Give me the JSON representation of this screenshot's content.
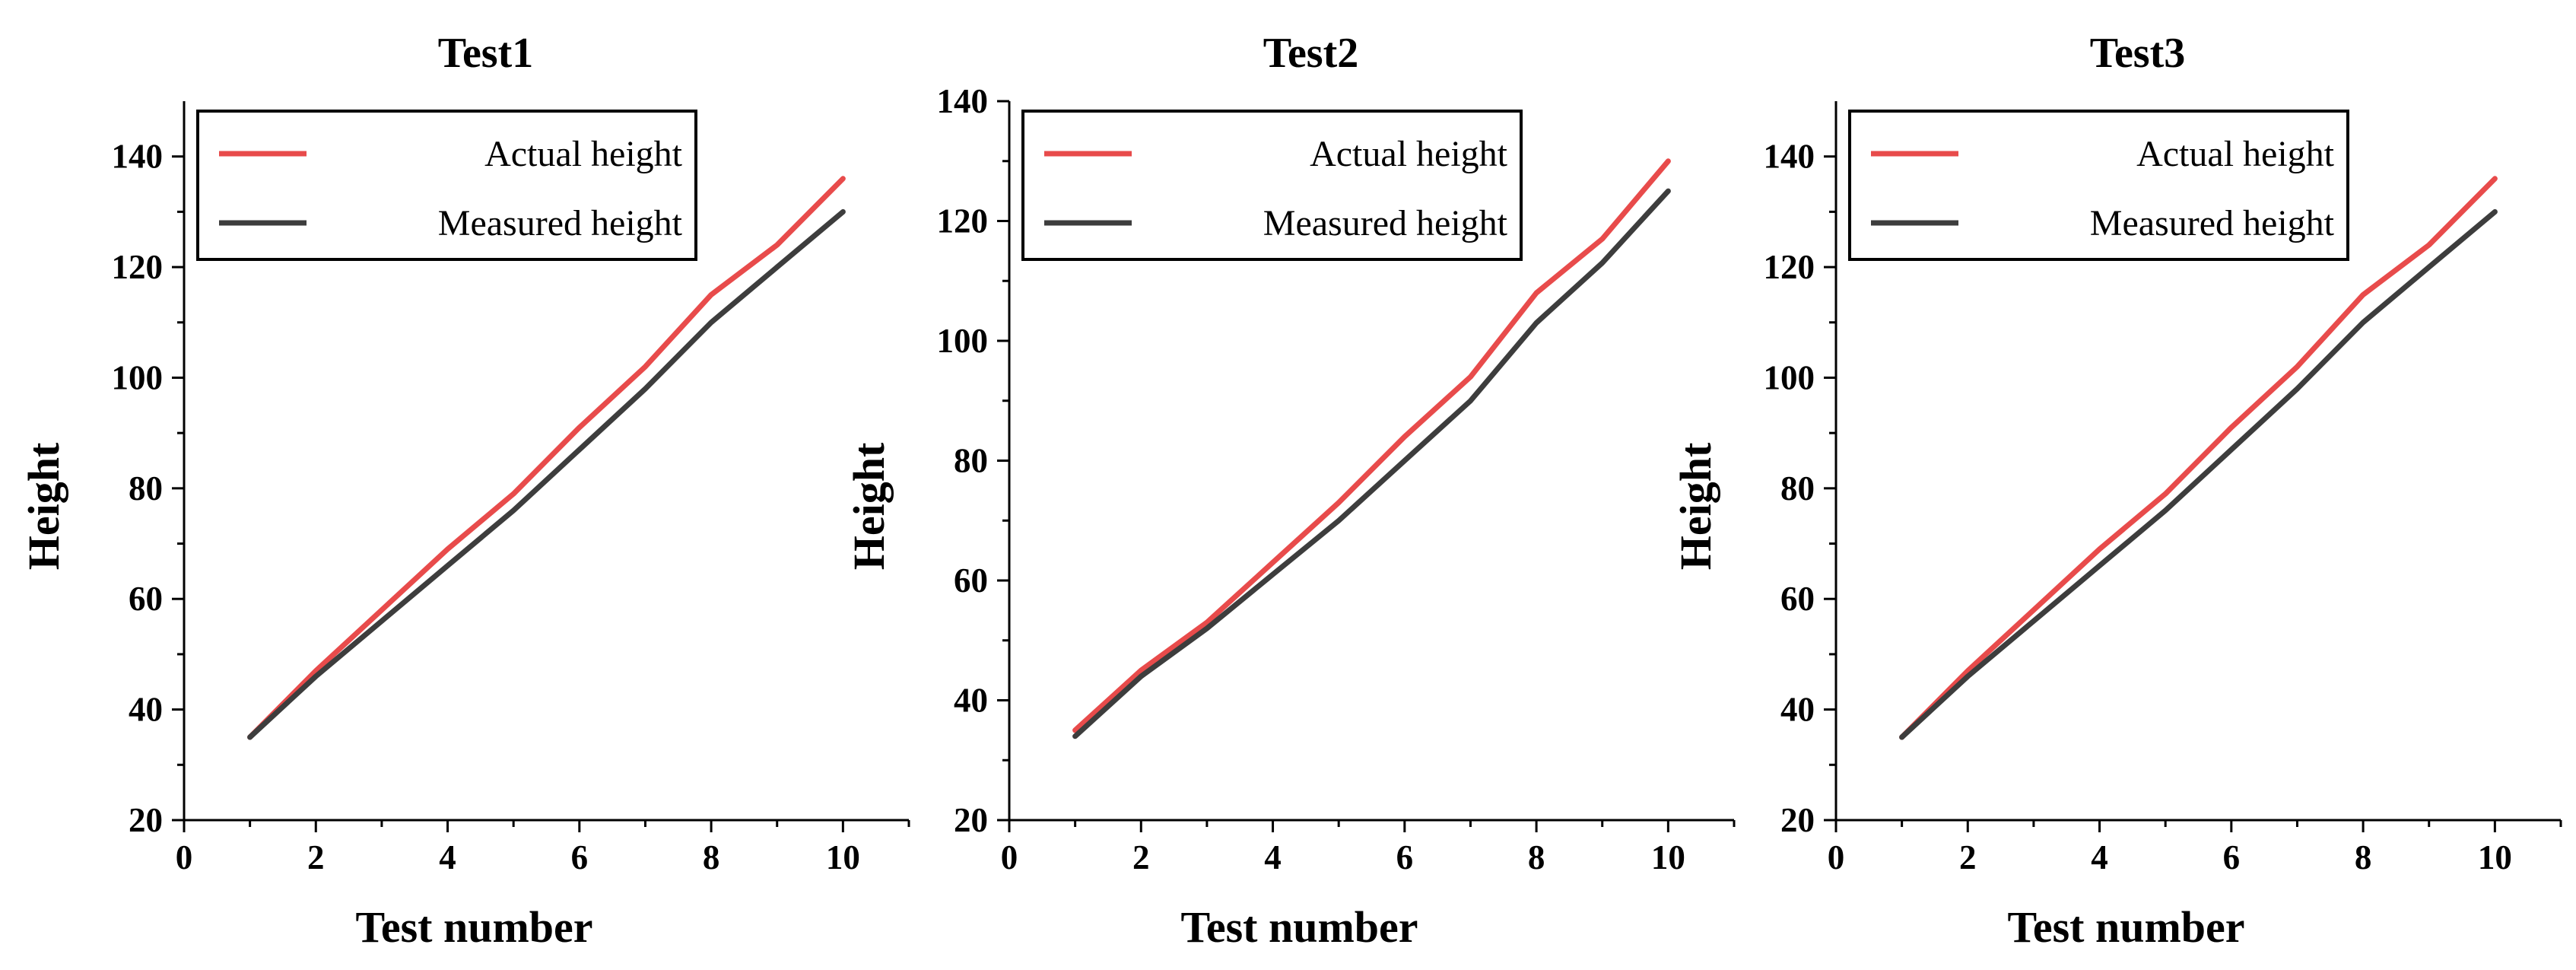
{
  "chart_data": [
    {
      "type": "line",
      "title": "Test1",
      "xlabel": "Test number",
      "ylabel": "Height",
      "xlim": [
        0,
        11
      ],
      "ylim": [
        20,
        150
      ],
      "xticks": [
        0,
        2,
        4,
        6,
        8,
        10
      ],
      "yticks": [
        20,
        40,
        60,
        80,
        100,
        120,
        140
      ],
      "grid": false,
      "legend_position": "top-left",
      "x": [
        1,
        2,
        3,
        4,
        5,
        6,
        7,
        8,
        9,
        10
      ],
      "series": [
        {
          "name": "Actual height",
          "color": "#e84b4b",
          "values": [
            35,
            47,
            58,
            69,
            79,
            91,
            102,
            115,
            124,
            136
          ]
        },
        {
          "name": "Measured height",
          "color": "#3d3d3d",
          "values": [
            35,
            46,
            56,
            66,
            76,
            87,
            98,
            110,
            120,
            130
          ]
        }
      ]
    },
    {
      "type": "line",
      "title": "Test2",
      "xlabel": "Test number",
      "ylabel": "Height",
      "xlim": [
        0,
        11
      ],
      "ylim": [
        20,
        140
      ],
      "xticks": [
        0,
        2,
        4,
        6,
        8,
        10
      ],
      "yticks": [
        20,
        40,
        60,
        80,
        100,
        120,
        140
      ],
      "grid": false,
      "legend_position": "top-left",
      "x": [
        1,
        2,
        3,
        4,
        5,
        6,
        7,
        8,
        9,
        10
      ],
      "series": [
        {
          "name": "Actual height",
          "color": "#e84b4b",
          "values": [
            35,
            45,
            53,
            63,
            73,
            84,
            94,
            108,
            117,
            130
          ]
        },
        {
          "name": "Measured height",
          "color": "#3d3d3d",
          "values": [
            34,
            44,
            52,
            61,
            70,
            80,
            90,
            103,
            113,
            125
          ]
        }
      ]
    },
    {
      "type": "line",
      "title": "Test3",
      "xlabel": "Test number",
      "ylabel": "Height",
      "xlim": [
        0,
        11
      ],
      "ylim": [
        20,
        150
      ],
      "xticks": [
        0,
        2,
        4,
        6,
        8,
        10
      ],
      "yticks": [
        20,
        40,
        60,
        80,
        100,
        120,
        140
      ],
      "grid": false,
      "legend_position": "top-left",
      "x": [
        1,
        2,
        3,
        4,
        5,
        6,
        7,
        8,
        9,
        10
      ],
      "series": [
        {
          "name": "Actual height",
          "color": "#e84b4b",
          "values": [
            35,
            47,
            58,
            69,
            79,
            91,
            102,
            115,
            124,
            136
          ]
        },
        {
          "name": "Measured height",
          "color": "#3d3d3d",
          "values": [
            35,
            46,
            56,
            66,
            76,
            87,
            98,
            110,
            120,
            130
          ]
        }
      ]
    }
  ]
}
